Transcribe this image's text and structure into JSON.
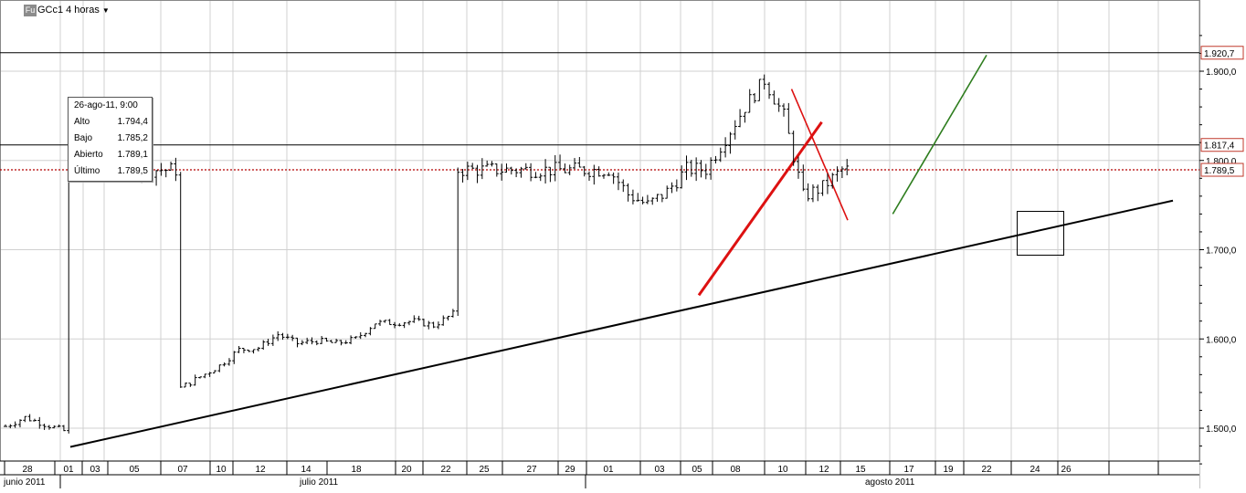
{
  "header": {
    "badge": "Fu",
    "symbol": "GCc1",
    "interval": "4 horas",
    "dropdown_icon": "caret-down-icon"
  },
  "tooltip": {
    "datetime": "26-ago-11, 9:00",
    "rows": [
      {
        "label": "Alto",
        "value": "1.794,4"
      },
      {
        "label": "Bajo",
        "value": "1.785,2"
      },
      {
        "label": "Abierto",
        "value": "1.789,1"
      },
      {
        "label": "Último",
        "value": "1.789,5"
      }
    ]
  },
  "colors": {
    "price_bars": "#000000",
    "support_line": "#000000",
    "red_trendline": "#dd1111",
    "green_trendline": "#2e7d1e",
    "last_price_line": "#b40000",
    "price_marker_border": "#c0392b",
    "gridline": "#d0d0d0"
  },
  "chart_data": {
    "type": "ohlc",
    "title": "GCc1 4 horas",
    "ylim": [
      1455,
      1945
    ],
    "y_ticks": [
      1500,
      1600,
      1700,
      1800,
      1900
    ],
    "y_tick_labels": [
      "1.500,0",
      "1.600,0",
      "1.700,0",
      "1.800,0",
      "1.900,0"
    ],
    "price_markers": [
      {
        "label": "1.920,7",
        "value": 1920.7
      },
      {
        "label": "1.817,4",
        "value": 1817.4
      },
      {
        "label": "1.789,5",
        "value": 1789.5
      }
    ],
    "horizontal_lines": [
      1920.7,
      1817.4
    ],
    "last_price": 1789.5,
    "x_day_labels": [
      "28",
      "01",
      "03",
      "05",
      "07",
      "10",
      "12",
      "14",
      "18",
      "20",
      "22",
      "25",
      "27",
      "29",
      "01",
      "03",
      "05",
      "08",
      "10",
      "12",
      "15",
      "17",
      "19",
      "22",
      "24",
      "26"
    ],
    "month_labels": [
      "junio 2011",
      "julio 2011",
      "agosto 2011"
    ],
    "series_anchors": [
      {
        "day": "27-jun",
        "close": 1502
      },
      {
        "day": "28-jun",
        "close": 1512
      },
      {
        "day": "30-jun",
        "close": 1497
      },
      {
        "day": "01-jul",
        "close": 1482
      },
      {
        "day": "05-jul",
        "close": 1500
      },
      {
        "day": "06-jul",
        "close": 1515
      },
      {
        "day": "07-jul",
        "close": 1530
      },
      {
        "day": "11-jul",
        "close": 1545
      },
      {
        "day": "13-jul",
        "close": 1570
      },
      {
        "day": "14-jul",
        "close": 1588
      },
      {
        "day": "15-jul",
        "close": 1590
      },
      {
        "day": "18-jul",
        "close": 1605
      },
      {
        "day": "19-jul",
        "close": 1595
      },
      {
        "day": "20-jul",
        "close": 1598
      },
      {
        "day": "21-jul",
        "close": 1595
      },
      {
        "day": "22-jul",
        "close": 1600
      },
      {
        "day": "25-jul",
        "close": 1618
      },
      {
        "day": "26-jul",
        "close": 1618
      },
      {
        "day": "27-jul",
        "close": 1620
      },
      {
        "day": "28-jul",
        "close": 1615
      },
      {
        "day": "29-jul",
        "close": 1628
      },
      {
        "day": "01-aug",
        "close": 1620
      },
      {
        "day": "02-aug",
        "close": 1660
      },
      {
        "day": "03-aug",
        "close": 1670
      },
      {
        "day": "04-aug",
        "close": 1660
      },
      {
        "day": "05-aug",
        "close": 1655
      },
      {
        "day": "08-aug",
        "close": 1720
      },
      {
        "day": "09-aug",
        "close": 1770
      },
      {
        "day": "10-aug",
        "close": 1790
      },
      {
        "day": "11-aug",
        "close": 1762
      },
      {
        "day": "12-aug",
        "close": 1750
      },
      {
        "day": "15-aug",
        "close": 1765
      },
      {
        "day": "16-aug",
        "close": 1790
      },
      {
        "day": "17-aug",
        "close": 1790
      },
      {
        "day": "18-aug",
        "close": 1825
      },
      {
        "day": "19-aug",
        "close": 1860
      },
      {
        "day": "22-aug",
        "close": 1890
      },
      {
        "day": "23-aug",
        "close": 1850
      },
      {
        "day": "24-aug",
        "close": 1760
      },
      {
        "day": "25-aug",
        "close": 1770
      },
      {
        "day": "26-aug",
        "close": 1789.5
      }
    ],
    "trendlines": [
      {
        "name": "support",
        "from": {
          "day": "01-jul",
          "price": 1479
        },
        "to": {
          "day": "31-aug",
          "price": 1755
        },
        "color": "#000000"
      },
      {
        "name": "red-thick",
        "from": {
          "day": "05-aug",
          "price": 1649
        },
        "to": {
          "day": "24-aug",
          "price": 1843
        },
        "color": "#dd1111"
      },
      {
        "name": "red-thin",
        "from": {
          "day": "15-aug",
          "price": 1733
        },
        "to": {
          "day": "23-aug",
          "price": 1880
        },
        "color": "#dd1111"
      },
      {
        "name": "green",
        "from": {
          "day": "22-aug",
          "price": 1918
        },
        "to": {
          "day": "26-aug",
          "price": 1740
        },
        "color": "#2e7d1e"
      }
    ],
    "grid": true,
    "legend": "none"
  }
}
